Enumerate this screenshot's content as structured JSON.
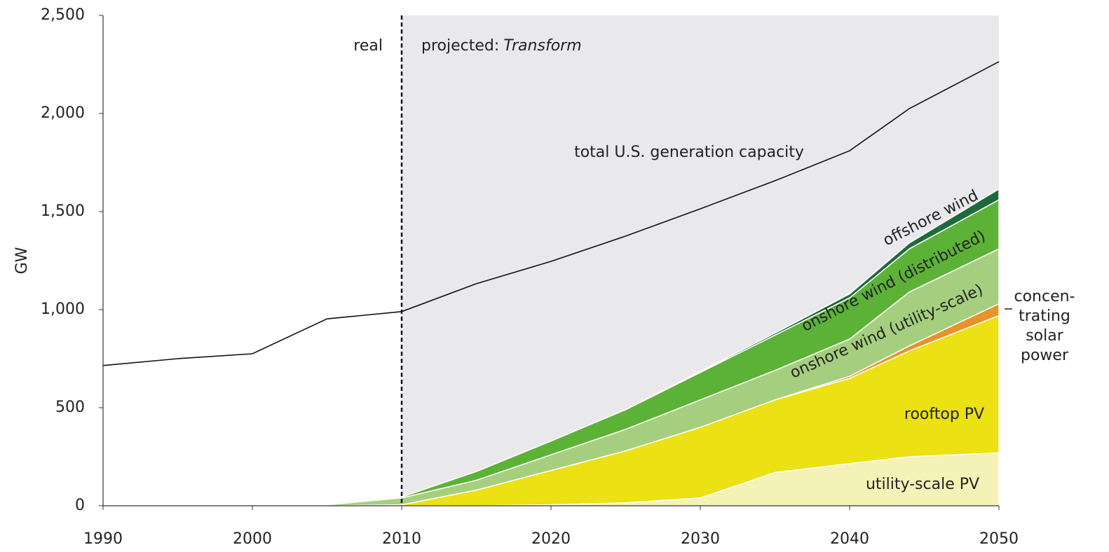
{
  "chart_data": {
    "type": "stacked_area",
    "y_label": "GW",
    "x": [
      1990,
      1995,
      2000,
      2005,
      2010,
      2015,
      2020,
      2025,
      2030,
      2035,
      2040,
      2044,
      2050
    ],
    "xlim": [
      1990,
      2050
    ],
    "xticks": [
      1990,
      2000,
      2010,
      2020,
      2030,
      2040,
      2050
    ],
    "ylim": [
      0,
      2500
    ],
    "yticks": [
      0,
      500,
      {
        "value": 1000,
        "label": "1,000"
      },
      {
        "value": 1500,
        "label": "1,500"
      },
      {
        "value": 2000,
        "label": "2,000"
      },
      {
        "value": 2500,
        "label": "2,500"
      }
    ],
    "projection_start": 2010,
    "real_label": "real",
    "projected_label": "projected:",
    "projected_scenario": "Transform",
    "series": [
      {
        "name": "utility-scale PV",
        "color": "#f4f2b6",
        "values": [
          0,
          0,
          0,
          0,
          0,
          0,
          5,
          15,
          40,
          170,
          215,
          250,
          270
        ]
      },
      {
        "name": "rooftop PV",
        "color": "#ebe113",
        "values": [
          0,
          0,
          0,
          0,
          5,
          80,
          175,
          265,
          360,
          370,
          435,
          540,
          700
        ]
      },
      {
        "name_lines": [
          "concen-",
          "trating",
          "solar",
          "power"
        ],
        "color": "#e8922a",
        "values": [
          0,
          0,
          0,
          0,
          0,
          0,
          0,
          0,
          0,
          0,
          10,
          25,
          60
        ]
      },
      {
        "name": "onshore wind (utility-scale)",
        "color": "#a5cf7e",
        "values": [
          0,
          0,
          0,
          5,
          35,
          50,
          80,
          110,
          140,
          150,
          190,
          275,
          280
        ]
      },
      {
        "name": "onshore wind (distributed)",
        "color": "#5cb236",
        "values": [
          0,
          0,
          0,
          0,
          5,
          45,
          70,
          100,
          140,
          180,
          210,
          220,
          250
        ]
      },
      {
        "name": "offshore wind",
        "color": "#1d6b3a",
        "values": [
          0,
          0,
          0,
          0,
          0,
          0,
          0,
          0,
          5,
          10,
          20,
          30,
          55
        ]
      }
    ],
    "total": {
      "name": "total U.S. generation capacity",
      "color": "#111111",
      "values": [
        715,
        750,
        775,
        953,
        990,
        1132,
        1246,
        1375,
        1514,
        1657,
        1810,
        2025,
        2264
      ]
    }
  }
}
